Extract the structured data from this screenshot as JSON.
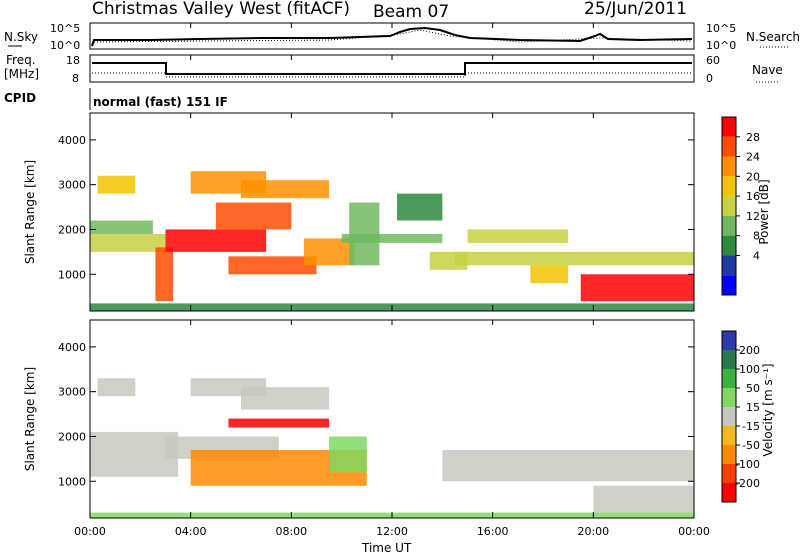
{
  "header": {
    "title": "Christmas Valley West (fitACF)",
    "beam": "Beam 07",
    "date": "25/Jun/2011"
  },
  "sky_panel": {
    "label": "N.Sky",
    "right_label": "N.Search",
    "left_ticks": [
      "10^5",
      "10^0"
    ],
    "right_ticks": [
      "10^5",
      "10^0"
    ]
  },
  "freq_panel": {
    "label_line1": "Freq.",
    "label_line2": "[MHz]",
    "left_ticks": [
      "18",
      "8"
    ],
    "right_ticks": [
      "60",
      "0"
    ],
    "right_label": "Nave"
  },
  "cpid_panel": {
    "label": "CPID",
    "mode_text": "normal (fast) 151 IF"
  },
  "axis": {
    "x_ticks": [
      "00:00",
      "04:00",
      "08:00",
      "12:00",
      "16:00",
      "20:00",
      "00:00"
    ],
    "x_label": "Time UT",
    "y_ticks": [
      "4000",
      "3000",
      "2000",
      "1000"
    ],
    "y_label": "Slant Range [km]"
  },
  "power_scale": {
    "title": "Power [dB]",
    "ticks": [
      "28",
      "24",
      "20",
      "16",
      "12",
      "8",
      "4"
    ],
    "colors": [
      "#ff0000",
      "#ff4c00",
      "#ff9000",
      "#f2c300",
      "#c8d040",
      "#70b860",
      "#2e8a3e",
      "#1f3a9e",
      "#0000ff"
    ]
  },
  "velocity_scale": {
    "title": "Velocity [m s⁻¹]",
    "ticks": [
      "200",
      "100",
      "50",
      "15",
      "-15",
      "-50",
      "-100",
      "-200"
    ],
    "colors": [
      "#2a3aa8",
      "#287a4e",
      "#3eb03e",
      "#80d860",
      "#c8c8c0",
      "#f2b820",
      "#ff8a00",
      "#ff4000",
      "#ff0000"
    ]
  },
  "chart_data": [
    {
      "type": "heatmap",
      "name": "power",
      "x_range_hours": [
        0,
        24
      ],
      "y_range_km": [
        180,
        4600
      ],
      "colorbar_label": "Power [dB]",
      "colorbar_ticks": [
        4,
        8,
        12,
        16,
        20,
        24,
        28
      ],
      "regions": [
        {
          "t0": 0.0,
          "t1": 3.0,
          "r0": 1500,
          "r1": 1900,
          "value": 14
        },
        {
          "t0": 0.0,
          "t1": 2.5,
          "r0": 1900,
          "r1": 2200,
          "value": 10
        },
        {
          "t0": 0.3,
          "t1": 1.8,
          "r0": 2800,
          "r1": 3200,
          "value": 18
        },
        {
          "t0": 2.6,
          "t1": 3.3,
          "r0": 400,
          "r1": 1600,
          "value": 24
        },
        {
          "t0": 3.0,
          "t1": 7.0,
          "r0": 1500,
          "r1": 2000,
          "value": 27
        },
        {
          "t0": 4.0,
          "t1": 7.0,
          "r0": 2800,
          "r1": 3300,
          "value": 22
        },
        {
          "t0": 5.0,
          "t1": 8.0,
          "r0": 2000,
          "r1": 2600,
          "value": 23
        },
        {
          "t0": 6.0,
          "t1": 9.5,
          "r0": 2700,
          "r1": 3100,
          "value": 22
        },
        {
          "t0": 5.5,
          "t1": 9.0,
          "r0": 1000,
          "r1": 1400,
          "value": 26
        },
        {
          "t0": 8.5,
          "t1": 10.5,
          "r0": 1200,
          "r1": 1800,
          "value": 21
        },
        {
          "t0": 10.0,
          "t1": 14.0,
          "r0": 1700,
          "r1": 1900,
          "value": 10
        },
        {
          "t0": 10.3,
          "t1": 11.5,
          "r0": 1200,
          "r1": 2600,
          "value": 9
        },
        {
          "t0": 12.2,
          "t1": 14.0,
          "r0": 2200,
          "r1": 2800,
          "value": 8
        },
        {
          "t0": 13.5,
          "t1": 15.0,
          "r0": 1100,
          "r1": 1500,
          "value": 14
        },
        {
          "t0": 14.5,
          "t1": 24.0,
          "r0": 1200,
          "r1": 1500,
          "value": 13
        },
        {
          "t0": 15.0,
          "t1": 19.0,
          "r0": 1700,
          "r1": 2000,
          "value": 14
        },
        {
          "t0": 19.5,
          "t1": 24.0,
          "r0": 400,
          "r1": 1000,
          "value": 28
        },
        {
          "t0": 17.5,
          "t1": 19.0,
          "r0": 800,
          "r1": 1200,
          "value": 18
        },
        {
          "t0": 0.0,
          "t1": 24.0,
          "r0": 180,
          "r1": 350,
          "value": 6
        }
      ]
    },
    {
      "type": "heatmap",
      "name": "velocity",
      "x_range_hours": [
        0,
        24
      ],
      "y_range_km": [
        180,
        4600
      ],
      "colorbar_label": "Velocity [m s⁻¹]",
      "colorbar_ticks": [
        -200,
        -100,
        -50,
        -15,
        15,
        50,
        100,
        200
      ],
      "regions": [
        {
          "t0": 0.0,
          "t1": 3.5,
          "r0": 1100,
          "r1": 2100,
          "value": 0
        },
        {
          "t0": 0.3,
          "t1": 1.8,
          "r0": 2900,
          "r1": 3300,
          "value": 0
        },
        {
          "t0": 3.0,
          "t1": 7.5,
          "r0": 1500,
          "r1": 2000,
          "value": 0
        },
        {
          "t0": 4.0,
          "t1": 7.0,
          "r0": 2900,
          "r1": 3300,
          "value": 0
        },
        {
          "t0": 6.0,
          "t1": 9.5,
          "r0": 2600,
          "r1": 3100,
          "value": 0
        },
        {
          "t0": 5.5,
          "t1": 9.5,
          "r0": 2200,
          "r1": 2400,
          "value": -220
        },
        {
          "t0": 4.0,
          "t1": 11.0,
          "r0": 900,
          "r1": 1700,
          "value": -60
        },
        {
          "t0": 9.5,
          "t1": 11.0,
          "r0": 1200,
          "r1": 2000,
          "value": 30
        },
        {
          "t0": 14.0,
          "t1": 24.0,
          "r0": 1000,
          "r1": 1700,
          "value": 0
        },
        {
          "t0": 20.0,
          "t1": 24.0,
          "r0": 300,
          "r1": 900,
          "value": 0
        },
        {
          "t0": 0.0,
          "t1": 24.0,
          "r0": 180,
          "r1": 300,
          "value": 30
        }
      ]
    }
  ]
}
